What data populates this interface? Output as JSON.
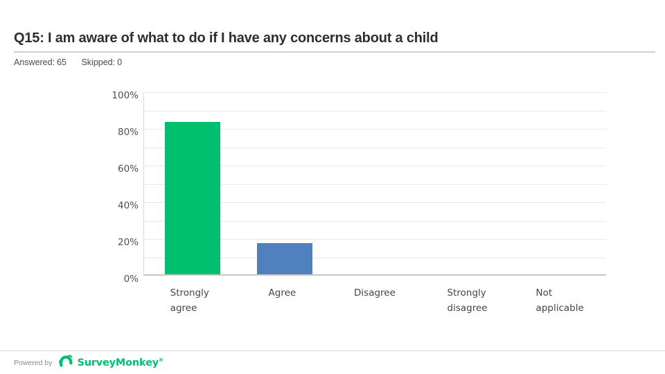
{
  "header": {
    "title": "Q15: I am aware of what to do if I have any concerns about a child",
    "answered_label": "Answered:",
    "answered_value": "65",
    "skipped_label": "Skipped:",
    "skipped_value": "0"
  },
  "chart_data": {
    "type": "bar",
    "categories": [
      "Strongly agree",
      "Agree",
      "Disagree",
      "Strongly disagree",
      "Not applicable"
    ],
    "category_lines": [
      [
        "Strongly",
        "agree"
      ],
      [
        "Agree"
      ],
      [
        "Disagree"
      ],
      [
        "Strongly",
        "disagree"
      ],
      [
        "Not",
        "applicable"
      ]
    ],
    "values": [
      83.08,
      16.92,
      0,
      0,
      0
    ],
    "bar_colors": [
      "#00BF6F",
      "#5081BE",
      null,
      null,
      null
    ],
    "title": "",
    "xlabel": "",
    "ylabel": "",
    "ylim": [
      0,
      100
    ],
    "ytick_labels": [
      "100%",
      "80%",
      "60%",
      "40%",
      "20%",
      "0%"
    ],
    "ytick_values": [
      100,
      80,
      60,
      40,
      20,
      0
    ],
    "gridline_step": 10,
    "grid": true,
    "legend": false
  },
  "footer": {
    "powered_by": "Powered by",
    "brand": "SurveyMonkey",
    "brand_mark": "®",
    "brand_color": "#00BF6F"
  },
  "colors": {
    "accent_green": "#00BF6F",
    "accent_blue": "#5081BE",
    "gridline": "#e9e9e9",
    "axis_line": "#c6c6c6",
    "text_dark": "#2e2e2e",
    "text_gray": "#4a4a4a"
  }
}
